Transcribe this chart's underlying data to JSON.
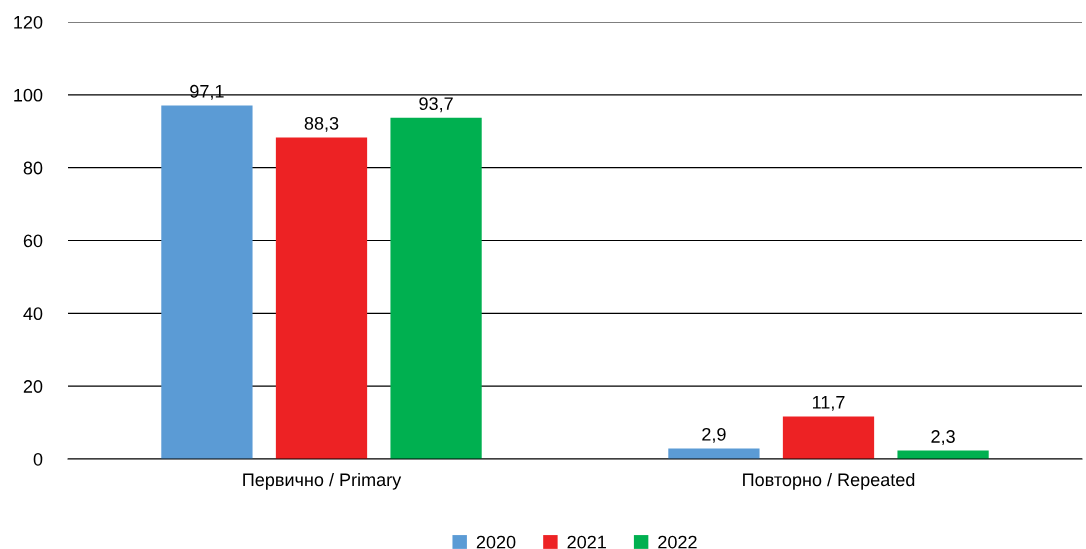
{
  "chart_data": {
    "type": "bar",
    "categories": [
      "Первично / Primary",
      "Повторно / Repeated"
    ],
    "series": [
      {
        "name": "2020",
        "color": "#5b9bd5",
        "values": [
          97.1,
          2.9
        ],
        "value_labels": [
          "97,1",
          "2,9"
        ]
      },
      {
        "name": "2021",
        "color": "#ed2224",
        "values": [
          88.3,
          11.7
        ],
        "value_labels": [
          "88,3",
          "11,7"
        ]
      },
      {
        "name": "2022",
        "color": "#00b050",
        "values": [
          93.7,
          2.3
        ],
        "value_labels": [
          "93,7",
          "2,3"
        ]
      }
    ],
    "ylim": [
      0,
      120
    ],
    "yticks": [
      0,
      20,
      40,
      60,
      80,
      100,
      120
    ],
    "grid": "y",
    "legend": "bottom"
  }
}
